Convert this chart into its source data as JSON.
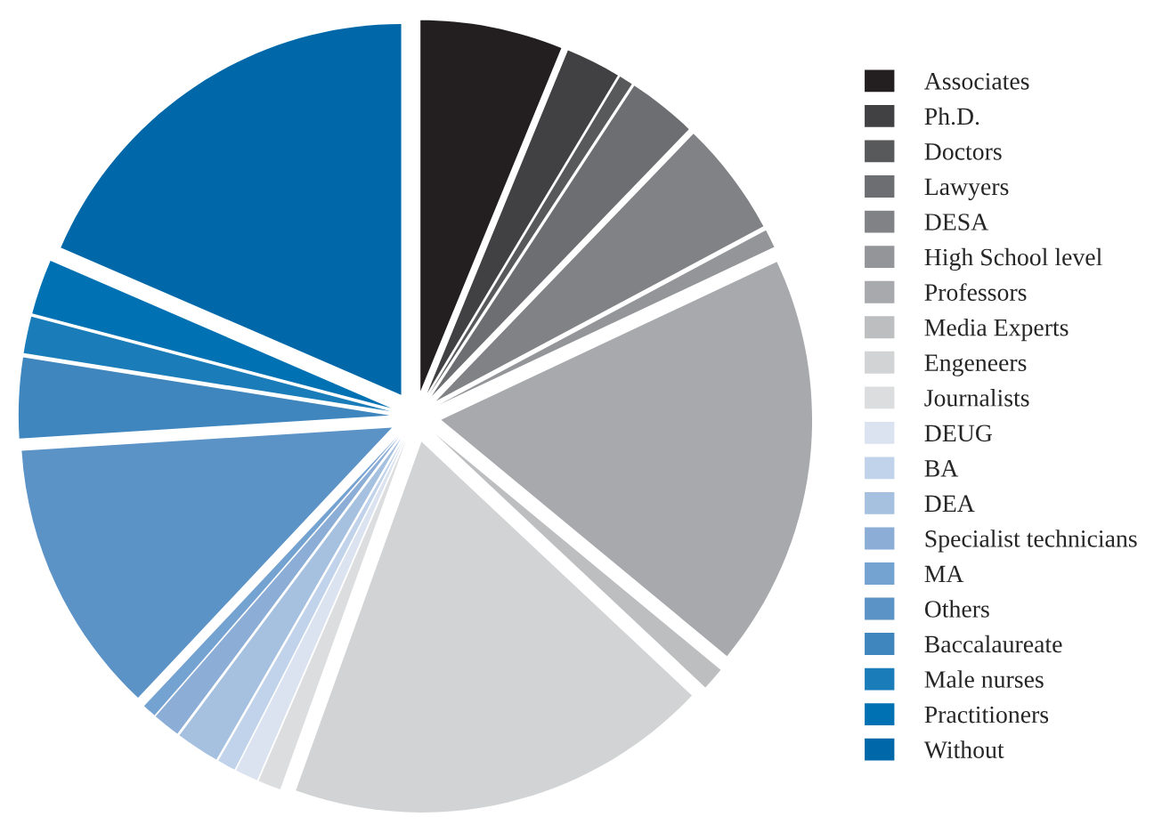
{
  "chart_data": {
    "type": "pie",
    "categories": [
      "Associates",
      "Ph.D.",
      "Doctors",
      "Lawyers",
      "DESA",
      "High School level",
      "Professors",
      "Media Experts",
      "Engeneers",
      "Journalists",
      "DEUG",
      "BA",
      "DEA",
      "Specialist technicians",
      "MA",
      "Others",
      "Baccalaureate",
      "Male nurses",
      "Practitioners",
      "Without"
    ],
    "values": [
      6.2,
      2.4,
      0.6,
      3.0,
      5.0,
      0.8,
      18.0,
      1.0,
      18.5,
      1.0,
      1.0,
      0.8,
      1.9,
      1.2,
      0.6,
      12.0,
      3.5,
      1.6,
      2.4,
      18.5
    ],
    "colors": [
      "#231f20",
      "#414042",
      "#58595b",
      "#6d6e71",
      "#808285",
      "#939598",
      "#a7a9ac",
      "#bcbec0",
      "#d1d3d4",
      "#dcddde",
      "#dbe3f0",
      "#c0d3ea",
      "#a6c0df",
      "#8caed6",
      "#74a2d1",
      "#5b93c6",
      "#3f86be",
      "#1a7db9",
      "#0072b3",
      "#0068a8"
    ],
    "legend": "right"
  }
}
